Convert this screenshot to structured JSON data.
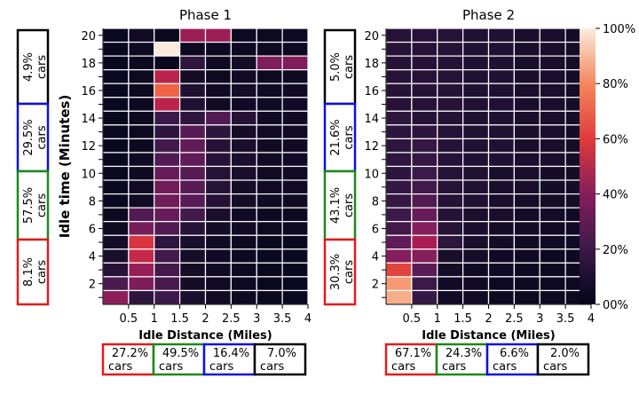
{
  "colorbar": {
    "tick_labels": [
      "00%",
      "20%",
      "40%",
      "60%",
      "80%",
      "100%"
    ],
    "tick_values": [
      0,
      20,
      40,
      60,
      80,
      100
    ]
  },
  "colors": {
    "red": "#e41a1c",
    "green": "#1a8a1a",
    "blue": "#1010e0",
    "black": "#000000"
  },
  "chart_data": [
    {
      "type": "heatmap",
      "title": "Phase 1",
      "xlabel": "Idle Distance (Miles)",
      "ylabel": "Idle time (Minutes)",
      "x_tick_labels": [
        "0.5",
        "1",
        "1.5",
        "2",
        "2.5",
        "3",
        "3.5",
        "4"
      ],
      "y_tick_labels": [
        "2",
        "4",
        "6",
        "8",
        "10",
        "12",
        "14",
        "16",
        "18",
        "20"
      ],
      "x_bins": [
        0.25,
        0.75,
        1.25,
        1.75,
        2.25,
        2.75,
        3.25,
        3.75
      ],
      "y_bins": [
        1,
        2,
        3,
        4,
        5,
        6,
        7,
        8,
        9,
        10,
        11,
        12,
        13,
        14,
        15,
        16,
        17,
        18,
        19,
        20
      ],
      "vmin": 0,
      "vmax": 100,
      "values_top_to_bottom": [
        [
          3,
          6,
          3,
          45,
          45,
          4,
          4,
          4
        ],
        [
          3,
          5,
          100,
          4,
          4,
          4,
          4,
          4
        ],
        [
          3,
          4,
          3,
          16,
          6,
          8,
          38,
          38
        ],
        [
          3,
          4,
          52,
          8,
          4,
          6,
          4,
          4
        ],
        [
          3,
          4,
          70,
          12,
          6,
          8,
          6,
          6
        ],
        [
          3,
          4,
          52,
          12,
          6,
          6,
          6,
          6
        ],
        [
          3,
          4,
          20,
          16,
          26,
          14,
          6,
          6
        ],
        [
          3,
          4,
          16,
          28,
          16,
          8,
          6,
          6
        ],
        [
          3,
          4,
          22,
          30,
          14,
          10,
          6,
          6
        ],
        [
          3,
          5,
          26,
          30,
          14,
          10,
          6,
          6
        ],
        [
          3,
          5,
          32,
          28,
          14,
          10,
          6,
          6
        ],
        [
          3,
          6,
          34,
          28,
          14,
          8,
          6,
          6
        ],
        [
          3,
          6,
          34,
          28,
          14,
          8,
          6,
          6
        ],
        [
          4,
          26,
          32,
          22,
          10,
          6,
          4,
          4
        ],
        [
          4,
          36,
          26,
          14,
          8,
          6,
          4,
          4
        ],
        [
          8,
          58,
          16,
          10,
          6,
          4,
          3,
          3
        ],
        [
          10,
          54,
          22,
          8,
          6,
          4,
          3,
          3
        ],
        [
          14,
          44,
          22,
          8,
          6,
          4,
          3,
          3
        ],
        [
          24,
          38,
          24,
          8,
          6,
          4,
          3,
          3
        ],
        [
          42,
          16,
          20,
          10,
          6,
          4,
          3,
          3
        ]
      ],
      "x_groups": [
        {
          "text": "27.2%\ncars",
          "color": "red"
        },
        {
          "text": "49.5%\ncars",
          "color": "green"
        },
        {
          "text": "16.4%\ncars",
          "color": "blue"
        },
        {
          "text": "7.0%\ncars",
          "color": "black"
        }
      ],
      "y_groups": [
        {
          "text": "4.9%\ncars",
          "color": "black"
        },
        {
          "text": "29.5%\ncars",
          "color": "blue"
        },
        {
          "text": "57.5%\ncars",
          "color": "green"
        },
        {
          "text": "8.1%\ncars",
          "color": "red"
        }
      ]
    },
    {
      "type": "heatmap",
      "title": "Phase 2",
      "xlabel": "Idle Distance (Miles)",
      "ylabel": "",
      "x_tick_labels": [
        "0.5",
        "1",
        "1.5",
        "2",
        "2.5",
        "3",
        "3.5",
        "4"
      ],
      "y_tick_labels": [
        "2",
        "4",
        "6",
        "8",
        "10",
        "12",
        "14",
        "16",
        "18",
        "20"
      ],
      "x_bins": [
        0.25,
        0.75,
        1.25,
        1.75,
        2.25,
        2.75,
        3.25,
        3.75
      ],
      "y_bins": [
        1,
        2,
        3,
        4,
        5,
        6,
        7,
        8,
        9,
        10,
        11,
        12,
        13,
        14,
        15,
        16,
        17,
        18,
        19,
        20
      ],
      "vmin": 0,
      "vmax": 100,
      "values_top_to_bottom": [
        [
          14,
          14,
          14,
          12,
          12,
          10,
          10,
          8
        ],
        [
          14,
          14,
          14,
          12,
          12,
          10,
          10,
          8
        ],
        [
          14,
          14,
          14,
          12,
          12,
          10,
          10,
          8
        ],
        [
          14,
          14,
          14,
          12,
          12,
          10,
          10,
          8
        ],
        [
          14,
          14,
          14,
          12,
          12,
          10,
          10,
          8
        ],
        [
          14,
          14,
          14,
          12,
          12,
          10,
          10,
          8
        ],
        [
          16,
          14,
          14,
          12,
          12,
          10,
          10,
          8
        ],
        [
          16,
          16,
          14,
          12,
          12,
          10,
          10,
          8
        ],
        [
          16,
          18,
          14,
          12,
          12,
          10,
          10,
          8
        ],
        [
          16,
          18,
          14,
          12,
          12,
          10,
          10,
          8
        ],
        [
          16,
          20,
          14,
          12,
          10,
          10,
          8,
          8
        ],
        [
          18,
          22,
          14,
          12,
          10,
          10,
          8,
          8
        ],
        [
          18,
          26,
          14,
          12,
          10,
          8,
          8,
          8
        ],
        [
          20,
          32,
          14,
          10,
          10,
          8,
          8,
          6
        ],
        [
          22,
          40,
          14,
          10,
          8,
          8,
          6,
          6
        ],
        [
          30,
          48,
          16,
          10,
          8,
          6,
          6,
          6
        ],
        [
          40,
          40,
          10,
          8,
          6,
          6,
          4,
          4
        ],
        [
          62,
          28,
          8,
          6,
          6,
          4,
          4,
          4
        ],
        [
          84,
          20,
          6,
          6,
          4,
          4,
          4,
          4
        ],
        [
          88,
          18,
          6,
          6,
          4,
          4,
          4,
          4
        ]
      ],
      "x_groups": [
        {
          "text": "67.1%\ncars",
          "color": "red"
        },
        {
          "text": "24.3%\ncars",
          "color": "green"
        },
        {
          "text": "6.6%\ncars",
          "color": "blue"
        },
        {
          "text": "2.0%\ncars",
          "color": "black"
        }
      ],
      "y_groups": [
        {
          "text": "5.0%\ncars",
          "color": "black"
        },
        {
          "text": "21.6%\ncars",
          "color": "blue"
        },
        {
          "text": "43.1%\ncars",
          "color": "green"
        },
        {
          "text": "30.3%\ncars",
          "color": "red"
        }
      ]
    }
  ]
}
